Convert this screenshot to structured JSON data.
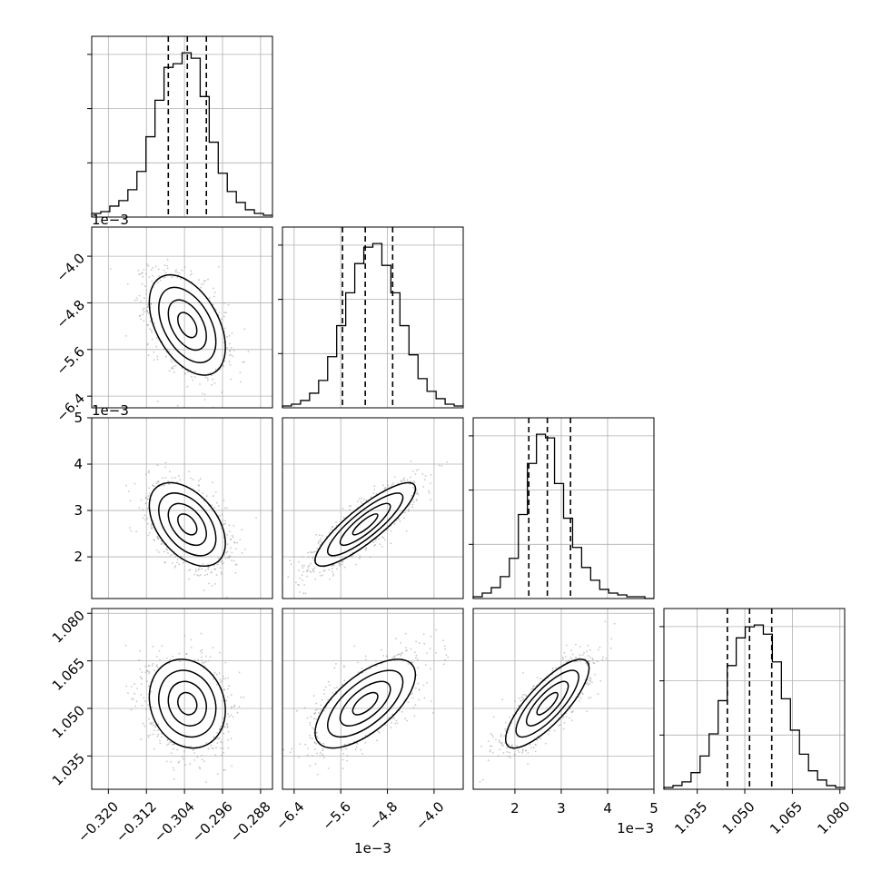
{
  "chart_data": {
    "type": "corner",
    "grid": true,
    "parameters": [
      {
        "range": [
          -0.3235,
          -0.2855
        ],
        "ticks": [
          -0.32,
          -0.312,
          -0.304,
          -0.296,
          -0.288
        ],
        "tick_labels": [
          "−0.320",
          "−0.312",
          "−0.304",
          "−0.296",
          "−0.288"
        ],
        "offset_label": "",
        "quantiles": [
          -0.3074,
          -0.3034,
          -0.2994
        ],
        "hist_counts": [
          2,
          3,
          6,
          9,
          15,
          25,
          44,
          64,
          82,
          84,
          90,
          87,
          66,
          41,
          24,
          14,
          8,
          4,
          2,
          1
        ]
      },
      {
        "range": [
          -0.0066,
          -0.0035
        ],
        "ticks": [
          -0.0064,
          -0.0056,
          -0.0048,
          -0.004
        ],
        "tick_labels": [
          "−6.4",
          "−5.6",
          "−4.8",
          "−4.0"
        ],
        "offset_label": "1e−3",
        "quantiles": [
          -0.00557,
          -0.00518,
          -0.00471
        ],
        "hist_counts": [
          1,
          2,
          4,
          8,
          15,
          28,
          45,
          63,
          79,
          88,
          90,
          78,
          63,
          45,
          29,
          16,
          9,
          5,
          2,
          1
        ]
      },
      {
        "range": [
          0.0011,
          0.005
        ],
        "ticks": [
          0.002,
          0.003,
          0.004,
          0.005
        ],
        "tick_labels": [
          "2",
          "3",
          "4",
          "5"
        ],
        "offset_label": "1e−3",
        "quantiles": [
          0.0023,
          0.0027,
          0.0032
        ],
        "hist_counts": [
          1,
          3,
          6,
          12,
          22,
          46,
          74,
          90,
          88,
          63,
          44,
          28,
          17,
          10,
          5,
          3,
          2,
          1,
          1,
          0
        ]
      },
      {
        "range": [
          1.0245,
          1.0815
        ],
        "ticks": [
          1.035,
          1.05,
          1.065,
          1.08
        ],
        "tick_labels": [
          "1.035",
          "1.050",
          "1.065",
          "1.080"
        ],
        "offset_label": "",
        "quantiles": [
          1.0445,
          1.0515,
          1.0585
        ],
        "hist_counts": [
          1,
          2,
          4,
          9,
          18,
          30,
          48,
          67,
          82,
          88,
          89,
          84,
          69,
          49,
          32,
          19,
          10,
          5,
          2,
          1
        ]
      }
    ],
    "pairs": [
      {
        "x": 0,
        "y": 1,
        "center": [
          -0.3034,
          -0.00518
        ],
        "rho": -0.45
      },
      {
        "x": 0,
        "y": 2,
        "center": [
          -0.3034,
          0.0027
        ],
        "rho": -0.45
      },
      {
        "x": 1,
        "y": 2,
        "center": [
          -0.00518,
          0.0027
        ],
        "rho": 0.86
      },
      {
        "x": 0,
        "y": 3,
        "center": [
          -0.3034,
          1.0515
        ],
        "rho": -0.15
      },
      {
        "x": 1,
        "y": 3,
        "center": [
          -0.00518,
          1.0515
        ],
        "rho": 0.65
      },
      {
        "x": 2,
        "y": 3,
        "center": [
          0.0027,
          1.0515
        ],
        "rho": 0.8
      }
    ]
  }
}
